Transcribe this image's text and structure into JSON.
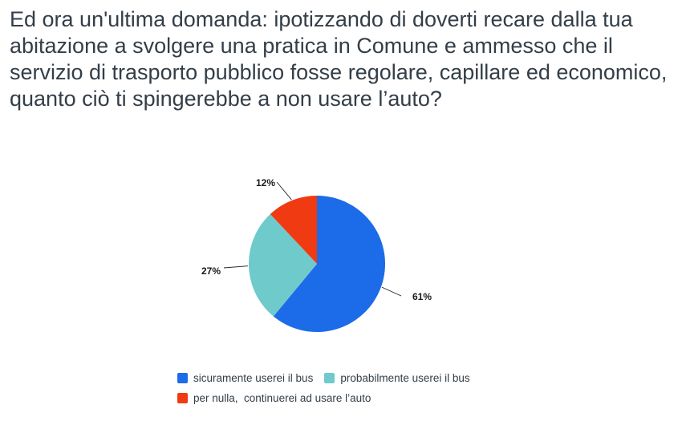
{
  "question": "Ed ora un'ultima domanda: ipotizzando di doverti recare dalla tua abitazione a svolgere una pratica in Comune e ammesso che il servizio di trasporto pubblico fosse regolare, capillare ed economico, quanto ciò ti spingerebbe a non usare l’auto?",
  "chart_data": {
    "type": "pie",
    "title": "",
    "slices": [
      {
        "name": "sicuramente userei il bus",
        "value": 61,
        "label": "61%",
        "color": "#1c6be8"
      },
      {
        "name": "probabilmente userei il bus",
        "value": 27,
        "label": "27%",
        "color": "#6fcacb"
      },
      {
        "name": "per nulla,  continuerei ad usare l’auto",
        "value": 12,
        "label": "12%",
        "color": "#f03a12"
      }
    ],
    "legend": "bottom"
  }
}
